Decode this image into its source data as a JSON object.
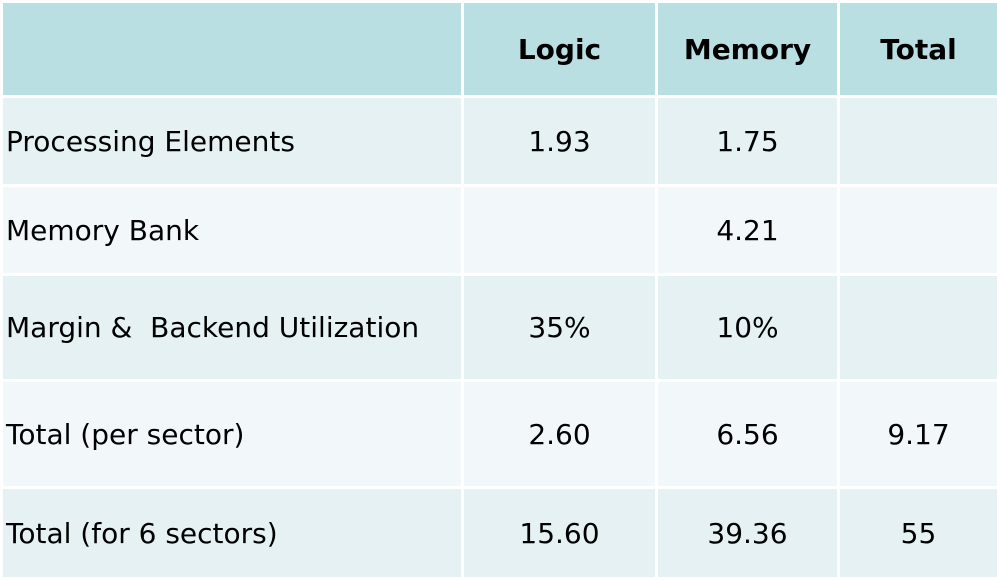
{
  "table": {
    "columns": [
      "Logic",
      "Memory",
      "Total"
    ],
    "rows": [
      [
        "Processing Elements",
        "1.93",
        "1.75",
        null
      ],
      [
        "Memory Bank",
        null,
        "4.21",
        null
      ],
      [
        "Margin &  Backend Utilization",
        "35%",
        "10%",
        null
      ],
      [
        "Total (per sector)",
        "2.60",
        "6.56",
        "9.17"
      ],
      [
        "Total (for 6 sectors)",
        "15.60",
        "39.36",
        "55"
      ]
    ]
  }
}
